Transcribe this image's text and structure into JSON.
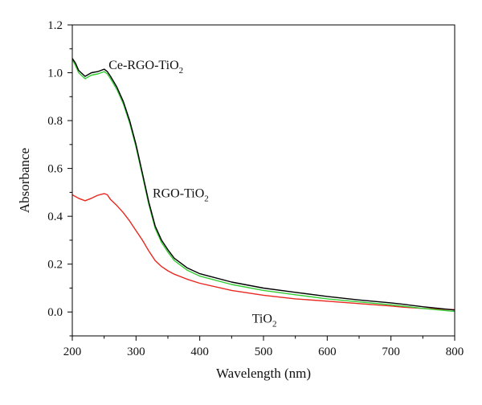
{
  "chart_data": {
    "type": "line",
    "xlabel": "Wavelength (nm)",
    "ylabel": "Absorbance",
    "xlim": [
      200,
      800
    ],
    "ylim": [
      -0.1,
      1.2
    ],
    "xticks": [
      200,
      300,
      400,
      500,
      600,
      700,
      800
    ],
    "yticks": [
      0.0,
      0.2,
      0.4,
      0.6,
      0.8,
      1.0,
      1.2
    ],
    "xtick_labels": [
      "200",
      "300",
      "400",
      "500",
      "600",
      "700",
      "800"
    ],
    "ytick_labels": [
      "0.0",
      "0.2",
      "0.4",
      "0.6",
      "0.8",
      "1.0",
      "1.2"
    ],
    "grid": false,
    "legend": "none",
    "series": [
      {
        "color": "#000000",
        "x": [
          200,
          205,
          210,
          220,
          230,
          240,
          250,
          255,
          260,
          270,
          280,
          290,
          300,
          310,
          320,
          330,
          340,
          350,
          360,
          380,
          400,
          450,
          500,
          550,
          600,
          650,
          700,
          720,
          750,
          800
        ],
        "y": [
          1.06,
          1.04,
          1.01,
          0.985,
          1.0,
          1.005,
          1.015,
          1.005,
          0.985,
          0.94,
          0.88,
          0.8,
          0.7,
          0.58,
          0.46,
          0.36,
          0.3,
          0.26,
          0.225,
          0.185,
          0.16,
          0.125,
          0.1,
          0.082,
          0.065,
          0.05,
          0.038,
          0.032,
          0.022,
          0.008
        ]
      },
      {
        "color": "#33cc33",
        "x": [
          200,
          205,
          210,
          220,
          230,
          240,
          250,
          255,
          260,
          270,
          280,
          290,
          300,
          310,
          320,
          330,
          340,
          350,
          360,
          380,
          400,
          450,
          500,
          550,
          600,
          650,
          700,
          720,
          750,
          800
        ],
        "y": [
          1.055,
          1.03,
          1.0,
          0.975,
          0.99,
          0.995,
          1.005,
          0.995,
          0.975,
          0.93,
          0.87,
          0.79,
          0.69,
          0.57,
          0.45,
          0.35,
          0.29,
          0.25,
          0.215,
          0.175,
          0.15,
          0.115,
          0.09,
          0.072,
          0.055,
          0.042,
          0.03,
          0.024,
          0.015,
          0.002
        ]
      },
      {
        "color": "#e8281f",
        "x": [
          200,
          210,
          220,
          230,
          240,
          250,
          255,
          260,
          270,
          280,
          290,
          300,
          310,
          320,
          330,
          340,
          350,
          360,
          380,
          400,
          450,
          500,
          550,
          600,
          650,
          700,
          720,
          750,
          800
        ],
        "y": [
          0.49,
          0.475,
          0.465,
          0.475,
          0.488,
          0.495,
          0.49,
          0.47,
          0.445,
          0.415,
          0.38,
          0.34,
          0.3,
          0.255,
          0.215,
          0.19,
          0.172,
          0.158,
          0.137,
          0.12,
          0.09,
          0.07,
          0.055,
          0.045,
          0.035,
          0.025,
          0.02,
          0.015,
          0.01
        ]
      }
    ],
    "annotations": [
      {
        "base": "Ce-RGO-TiO",
        "sub": "2",
        "x": 257,
        "y": 1.015
      },
      {
        "base": "RGO-TiO",
        "sub": "2",
        "x": 326,
        "y": 0.48
      },
      {
        "base": "TiO",
        "sub": "2",
        "x": 482,
        "y": -0.045
      }
    ]
  }
}
